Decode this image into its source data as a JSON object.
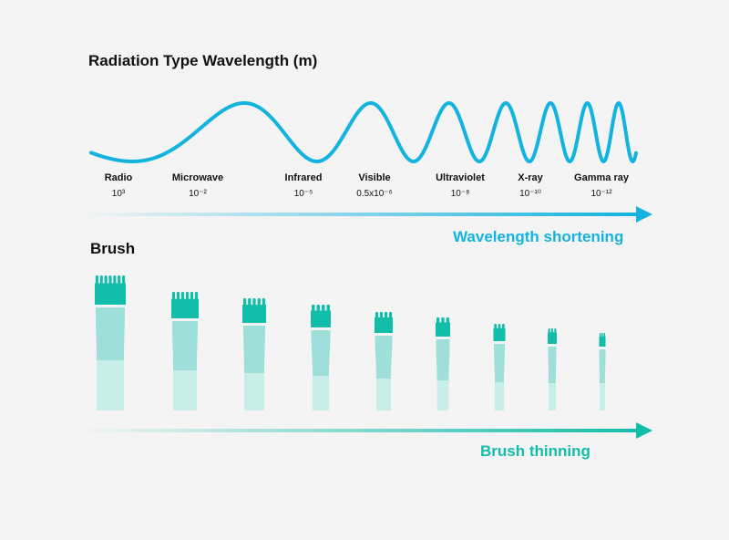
{
  "radiation": {
    "title": "Radiation Type Wavelength (m)",
    "bands": [
      {
        "name": "Radio",
        "value_text": "10³"
      },
      {
        "name": "Microwave",
        "value_text": "10⁻²"
      },
      {
        "name": "Infrared",
        "value_text": "10⁻⁵"
      },
      {
        "name": "Visible",
        "value_text": "0.5x10⁻⁶"
      },
      {
        "name": "Ultraviolet",
        "value_text": "10⁻⁸"
      },
      {
        "name": "X-ray",
        "value_text": "10⁻¹⁰"
      },
      {
        "name": "Gamma ray",
        "value_text": "10⁻¹²"
      }
    ],
    "arrow_label": "Wavelength shortening",
    "colors": {
      "wave": "#13b3df",
      "arrow": "#13b3df",
      "label": "#13b3df"
    }
  },
  "brush": {
    "title": "Brush",
    "arrow_label": "Brush thinning",
    "count": 9,
    "colors": {
      "tip": "#12bda9",
      "middle": "#9ee0d9",
      "handle": "#c8eee9",
      "arrow": "#12bda9",
      "label": "#12bda9"
    }
  }
}
